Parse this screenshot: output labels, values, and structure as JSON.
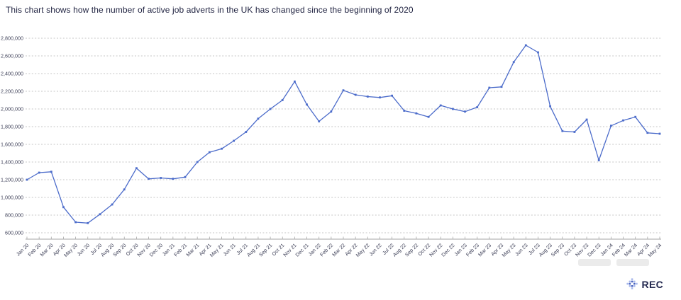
{
  "title": "This chart shows how the number of active job adverts in the UK has changed since the beginning of 2020",
  "logo": {
    "text": "REC",
    "icon": "dots-diamond-icon"
  },
  "chart_data": {
    "type": "line",
    "title": "This chart shows how the number of active job adverts in the UK has changed since the beginning of 2020",
    "xlabel": "",
    "ylabel": "",
    "ylim": [
      600000,
      2800000
    ],
    "ytick_step": 200000,
    "ytick_labels": [
      "600,000",
      "800,000",
      "1,000,000",
      "1,200,000",
      "1,400,000",
      "1,600,000",
      "1,800,000",
      "2,000,000",
      "2,200,000",
      "2,400,000",
      "2,600,000",
      "2,800,000"
    ],
    "grid": "horizontal-dashed",
    "legend": "none",
    "colors": {
      "line": "#4b6bca",
      "marker": "#4b6bca",
      "grid": "#b4b4b4",
      "axis": "#a6a6a6",
      "axis_text": "#3e4058"
    },
    "x": [
      "Jan 20",
      "Feb 20",
      "Mar 20",
      "Apr 20",
      "May 20",
      "Jun 20",
      "Jul 20",
      "Aug 20",
      "Sep 20",
      "Oct 20",
      "Nov 20",
      "Dec 20",
      "Jan 21",
      "Feb 21",
      "Mar 21",
      "Apr 21",
      "May 21",
      "Jun 21",
      "Jul 21",
      "Aug 21",
      "Sep 21",
      "Oct 21",
      "Nov 21",
      "Dec 21",
      "Jan 22",
      "Feb 22",
      "Mar 22",
      "Apr 22",
      "May 22",
      "Jun 22",
      "Jul 22",
      "Aug 22",
      "Sep 22",
      "Oct 22",
      "Nov 22",
      "Dec 22",
      "Jan 23",
      "Feb 23",
      "Mar 23",
      "Apr 23",
      "May 23",
      "Jun 23",
      "Jul 23",
      "Aug 23",
      "Sep 23",
      "Oct 23",
      "Nov 23",
      "Dec 23",
      "Jan 24",
      "Feb 24",
      "Mar 24",
      "Apr 24",
      "May 24"
    ],
    "values": [
      1200000,
      1280000,
      1290000,
      890000,
      720000,
      710000,
      810000,
      920000,
      1090000,
      1330000,
      1210000,
      1220000,
      1210000,
      1230000,
      1400000,
      1510000,
      1550000,
      1640000,
      1740000,
      1890000,
      2000000,
      2100000,
      2310000,
      2050000,
      1860000,
      1970000,
      2210000,
      2160000,
      2140000,
      2130000,
      2150000,
      1980000,
      1950000,
      1910000,
      2040000,
      2000000,
      1970000,
      2020000,
      2240000,
      2250000,
      2530000,
      2720000,
      2640000,
      2030000,
      1750000,
      1740000,
      1880000,
      1420000,
      1810000,
      1870000,
      1910000,
      1730000,
      1720000
    ]
  }
}
